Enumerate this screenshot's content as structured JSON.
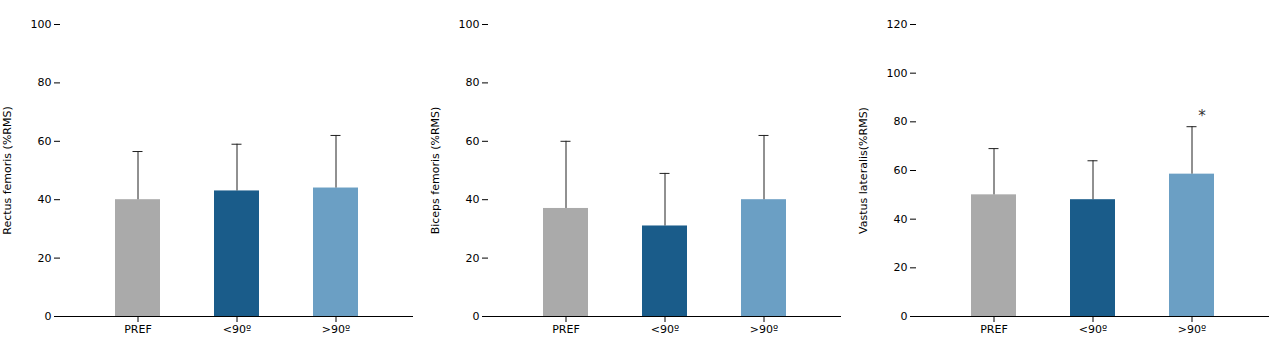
{
  "chart_data": [
    {
      "type": "bar",
      "ylabel": "Rectus femoris (%RMS)",
      "categories": [
        "PREF",
        "<90º",
        ">90º"
      ],
      "values": [
        40.0,
        43.0,
        44.0
      ],
      "errors": [
        16.5,
        16.0,
        18.0
      ],
      "colors": [
        "#aaaaaa",
        "#1a5c8a",
        "#6b9fc4"
      ],
      "ylim": [
        0,
        100
      ],
      "yticks": [
        0,
        20,
        40,
        60,
        80,
        100
      ],
      "grid": false,
      "annotations": []
    },
    {
      "type": "bar",
      "ylabel": "Biceps femoris (%RMS)",
      "categories": [
        "PREF",
        "<90º",
        ">90º"
      ],
      "values": [
        37.0,
        31.0,
        40.0
      ],
      "errors": [
        23.0,
        18.0,
        22.0
      ],
      "colors": [
        "#aaaaaa",
        "#1a5c8a",
        "#6b9fc4"
      ],
      "ylim": [
        0,
        100
      ],
      "yticks": [
        0,
        20,
        40,
        60,
        80,
        100
      ],
      "grid": false,
      "annotations": []
    },
    {
      "type": "bar",
      "ylabel": "Vastus lateralis(%RMS)",
      "categories": [
        "PREF",
        "<90º",
        ">90º"
      ],
      "values": [
        50.0,
        48.0,
        58.5
      ],
      "errors": [
        19.0,
        16.0,
        19.5
      ],
      "colors": [
        "#aaaaaa",
        "#1a5c8a",
        "#6b9fc4"
      ],
      "ylim": [
        0,
        120
      ],
      "yticks": [
        0,
        20,
        40,
        60,
        80,
        100,
        120
      ],
      "grid": false,
      "annotations": [
        {
          "x": ">90º",
          "text": "*"
        }
      ]
    }
  ]
}
